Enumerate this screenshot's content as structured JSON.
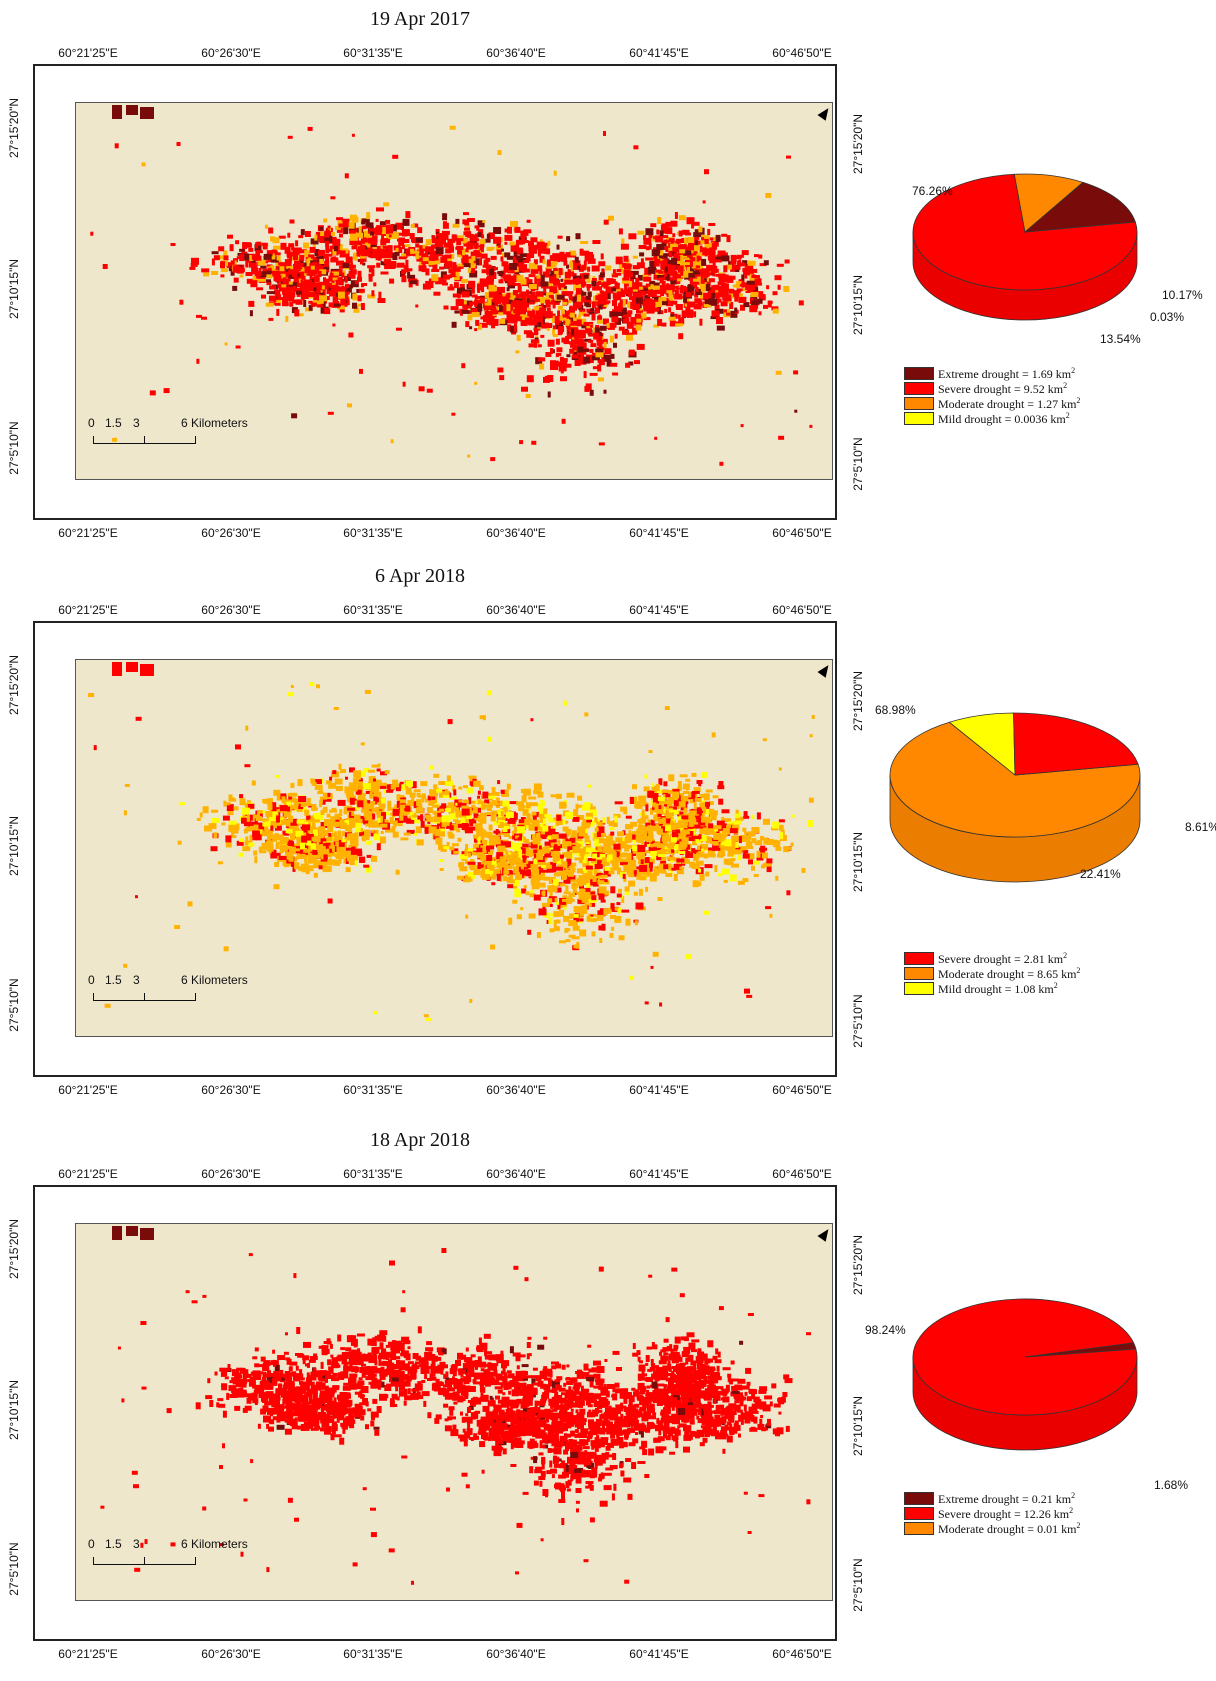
{
  "colors": {
    "background": "#efe7cc",
    "extreme": "#7a0b0b",
    "severe": "#ff0000",
    "moderate": "#ff8800",
    "mild": "#ffff00",
    "moderate_map": "#ffb300"
  },
  "axes": {
    "longitude_ticks": [
      "60°21'25\"E",
      "60°26'30\"E",
      "60°31'35\"E",
      "60°36'40\"E",
      "60°41'45\"E",
      "60°46'50\"E"
    ],
    "latitude_ticks": [
      "27°15'20\"N",
      "27°10'15\"N",
      "27°5'10\"N"
    ]
  },
  "scale_bar": {
    "labels": [
      "0",
      "1.5",
      "3",
      "6 Kilometers"
    ]
  },
  "north_arrow": "north-arrow-icon",
  "panels": [
    {
      "title": "19 Apr 2017",
      "pie": {
        "slices": [
          {
            "key": "severe",
            "pct": 76.26,
            "label": "76.26%"
          },
          {
            "key": "moderate",
            "pct": 10.17,
            "label": "10.17%"
          },
          {
            "key": "mild",
            "pct": 0.03,
            "label": "0.03%"
          },
          {
            "key": "extreme",
            "pct": 13.54,
            "label": "13.54%"
          }
        ]
      },
      "legend": [
        {
          "key": "extreme",
          "label": "Extreme drought = 1.69 km",
          "unit_power": "2"
        },
        {
          "key": "severe",
          "label": "Severe drought = 9.52 km",
          "unit_power": "2"
        },
        {
          "key": "moderate",
          "label": "Moderate drought = 1.27 km",
          "unit_power": "2"
        },
        {
          "key": "mild",
          "label": "Mild drought = 0.0036 km",
          "unit_power": "2"
        }
      ]
    },
    {
      "title": "6 Apr 2018",
      "pie": {
        "slices": [
          {
            "key": "moderate",
            "pct": 68.98,
            "label": "68.98%"
          },
          {
            "key": "mild",
            "pct": 8.61,
            "label": "8.61%"
          },
          {
            "key": "severe",
            "pct": 22.41,
            "label": "22.41%"
          }
        ]
      },
      "legend": [
        {
          "key": "severe",
          "label": "Severe drought = 2.81 km",
          "unit_power": "2"
        },
        {
          "key": "moderate",
          "label": "Moderate drought = 8.65 km",
          "unit_power": "2"
        },
        {
          "key": "mild",
          "label": "Mild drought = 1.08 km",
          "unit_power": "2"
        }
      ]
    },
    {
      "title": "18 Apr 2018",
      "pie": {
        "slices": [
          {
            "key": "severe",
            "pct": 98.24,
            "label": "98.24%"
          },
          {
            "key": "extreme",
            "pct": 1.68,
            "label": "1.68%"
          }
        ]
      },
      "legend": [
        {
          "key": "extreme",
          "label": "Extreme drought = 0.21 km",
          "unit_power": "2"
        },
        {
          "key": "severe",
          "label": "Severe drought = 12.26 km",
          "unit_power": "2"
        },
        {
          "key": "moderate",
          "label": "Moderate drought = 0.01 km",
          "unit_power": "2"
        }
      ]
    }
  ]
}
